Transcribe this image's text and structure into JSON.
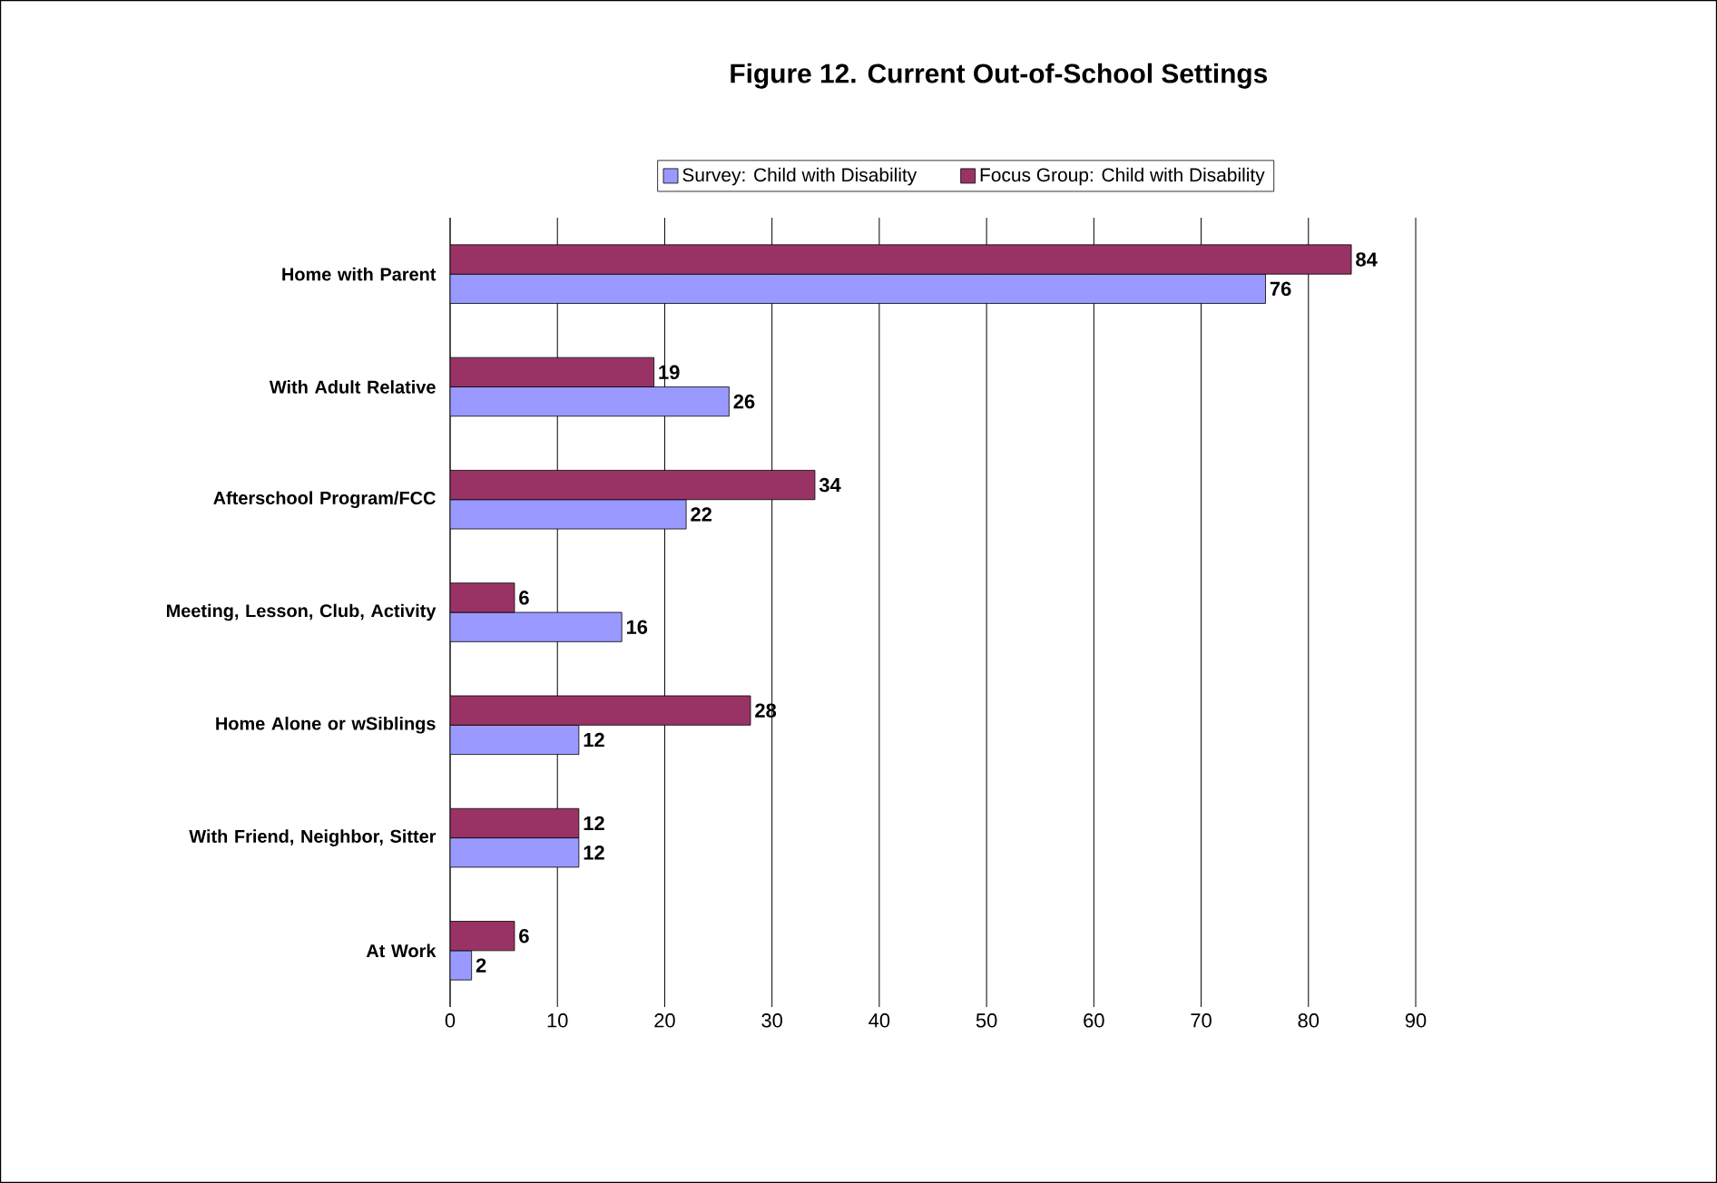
{
  "chart_data": {
    "type": "bar",
    "orientation": "horizontal",
    "title": "Figure 12.  Current Out-of-School Settings",
    "categories": [
      "Home with Parent",
      "With Adult Relative",
      "Afterschool Program/FCC",
      "Meeting, Lesson, Club, Activity",
      "Home Alone or wSiblings",
      "With Friend, Neighbor, Sitter",
      "At Work"
    ],
    "series": [
      {
        "name": "Survey: Child with Disability",
        "color": "#9999ff",
        "values": [
          76,
          26,
          22,
          16,
          12,
          12,
          2
        ]
      },
      {
        "name": "Focus Group: Child with Disability",
        "color": "#993366",
        "values": [
          84,
          19,
          34,
          6,
          28,
          12,
          6
        ]
      }
    ],
    "xlim": [
      0,
      90
    ],
    "xticks": [
      0,
      10,
      20,
      30,
      40,
      50,
      60,
      70,
      80,
      90
    ],
    "grid": "x",
    "legend": "top",
    "data_labels": true
  }
}
